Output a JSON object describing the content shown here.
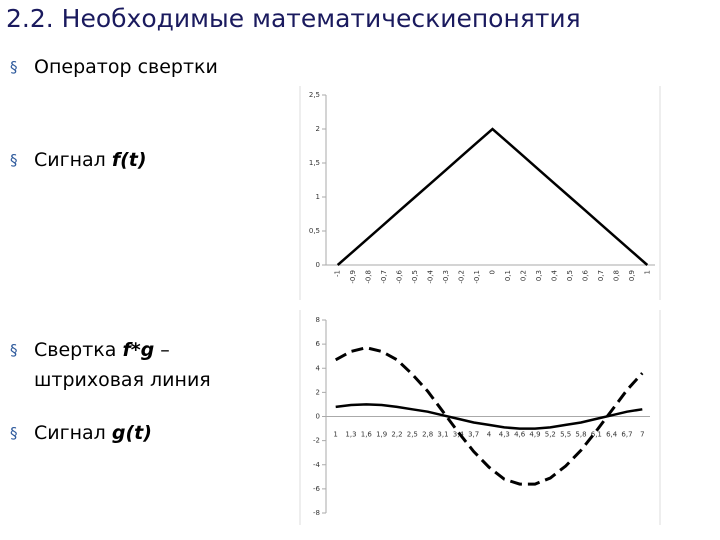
{
  "header": {
    "title": "2.2. Необходимые математическиепонятия"
  },
  "bullets": [
    {
      "lines": [
        [
          {
            "text": "Оператор свертки"
          }
        ]
      ]
    },
    {
      "lines": [
        [
          {
            "text": "Сигнал "
          },
          {
            "text": "f(t)",
            "em": true
          }
        ]
      ]
    },
    {
      "lines": [
        [
          {
            "text": "Свертка "
          },
          {
            "text": "f*g",
            "em": true
          },
          {
            "text": " –"
          }
        ],
        [
          {
            "text": "штриховая линия"
          }
        ]
      ]
    },
    {
      "lines": [
        [
          {
            "text": "Сигнал "
          },
          {
            "text": "g(t)",
            "em": true
          }
        ]
      ]
    }
  ],
  "chart_data": [
    {
      "type": "line",
      "categories": [
        "-1",
        "-0,9",
        "-0,8",
        "-0,7",
        "-0,6",
        "-0,5",
        "-0,4",
        "-0,3",
        "-0,2",
        "-0,1",
        "0",
        "0,1",
        "0,2",
        "0,3",
        "0,4",
        "0,5",
        "0,6",
        "0,7",
        "0,8",
        "0,9",
        "1"
      ],
      "values": [
        0,
        0.2,
        0.4,
        0.6,
        0.8,
        1,
        1.2,
        1.4,
        1.6,
        1.8,
        2,
        1.8,
        1.6,
        1.4,
        1.2,
        1,
        0.8,
        0.6,
        0.4,
        0.2,
        0
      ],
      "color": "#000000",
      "ylim": [
        0,
        2.5
      ],
      "yticks": [
        0,
        {
          "value": 0.5,
          "label": "0,5"
        },
        1,
        {
          "value": 1.5,
          "label": "1,5"
        },
        2,
        {
          "value": 2.5,
          "label": "2,5"
        }
      ]
    },
    {
      "type": "line",
      "categories": [
        "1",
        "1,3",
        "1,6",
        "1,9",
        "2,2",
        "2,5",
        "2,8",
        "3,1",
        "3,4",
        "3,7",
        "4",
        "4,3",
        "4,6",
        "4,9",
        "5,2",
        "5,5",
        "5,8",
        "6,1",
        "6,4",
        "6,7",
        "7"
      ],
      "series": [
        {
          "color": "#000000",
          "dashed": false,
          "values": [
            0.8,
            0.95,
            1,
            0.95,
            0.8,
            0.6,
            0.4,
            0.1,
            -0.2,
            -0.5,
            -0.7,
            -0.9,
            -1,
            -1,
            -0.9,
            -0.7,
            -0.5,
            -0.2,
            0.1,
            0.4,
            0.6
          ]
        },
        {
          "color": "#000000",
          "dashed": true,
          "values": [
            4.7,
            5.4,
            5.7,
            5.4,
            4.7,
            3.5,
            2.1,
            0.4,
            -1.3,
            -2.9,
            -4.2,
            -5.2,
            -5.6,
            -5.6,
            -5.1,
            -4.1,
            -2.8,
            -1.2,
            0.5,
            2.2,
            3.6
          ]
        }
      ],
      "ylim": [
        -8,
        8
      ],
      "yticks": [
        -8,
        -6,
        -4,
        -2,
        0,
        2,
        4,
        6,
        8
      ]
    }
  ]
}
